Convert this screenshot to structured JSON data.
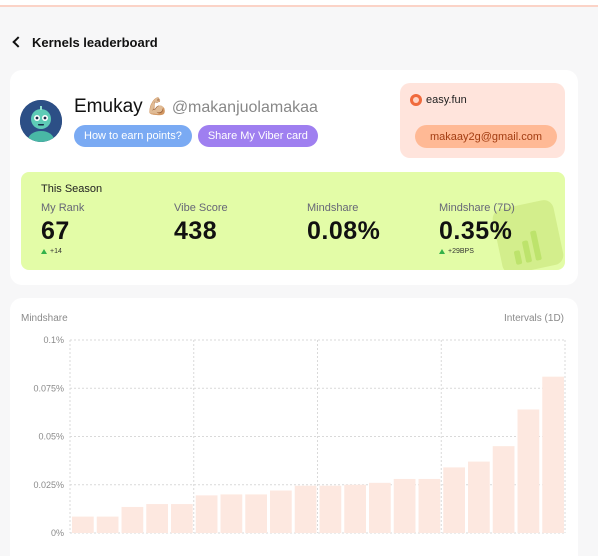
{
  "header": {
    "title": "Kernels leaderboard"
  },
  "profile": {
    "name": "Emukay",
    "emoji": "💪🏼",
    "handle": "@makanjuolamakaa",
    "earn_points_label": "How to earn points?",
    "share_card_label": "Share My Viber card"
  },
  "easyfun": {
    "name": "easy.fun",
    "email": "makaay2g@gmail.com"
  },
  "season": {
    "title": "This Season",
    "stats": [
      {
        "label": "My Rank",
        "value": "67",
        "delta": "+14"
      },
      {
        "label": "Vibe Score",
        "value": "438"
      },
      {
        "label": "Mindshare",
        "value": "0.08%"
      },
      {
        "label": "Mindshare (7D)",
        "value": "0.35%",
        "delta": "+29BPS"
      }
    ]
  },
  "chart": {
    "ylabel": "Mindshare",
    "interval_label": "Intervals (1D)"
  },
  "colors": {
    "season_bg": "#e3fca7",
    "easyfun_bg": "#ffe4dc",
    "bar_fill": "#fde8e0",
    "pill_blue": "#7aaaf3",
    "pill_purple": "#9f7ff0"
  },
  "chart_data": {
    "type": "bar",
    "ylabel": "Mindshare",
    "ylim": [
      0,
      0.1
    ],
    "yticks": [
      0,
      0.025,
      0.05,
      0.075,
      0.1
    ],
    "ytick_labels": [
      "0%",
      "0.025%",
      "0.05%",
      "0.075%",
      "0.1%"
    ],
    "grid": true,
    "values": [
      0.0085,
      0.0085,
      0.0135,
      0.015,
      0.015,
      0.0195,
      0.02,
      0.02,
      0.022,
      0.0245,
      0.0245,
      0.025,
      0.026,
      0.028,
      0.028,
      0.034,
      0.037,
      0.045,
      0.064,
      0.081
    ]
  }
}
